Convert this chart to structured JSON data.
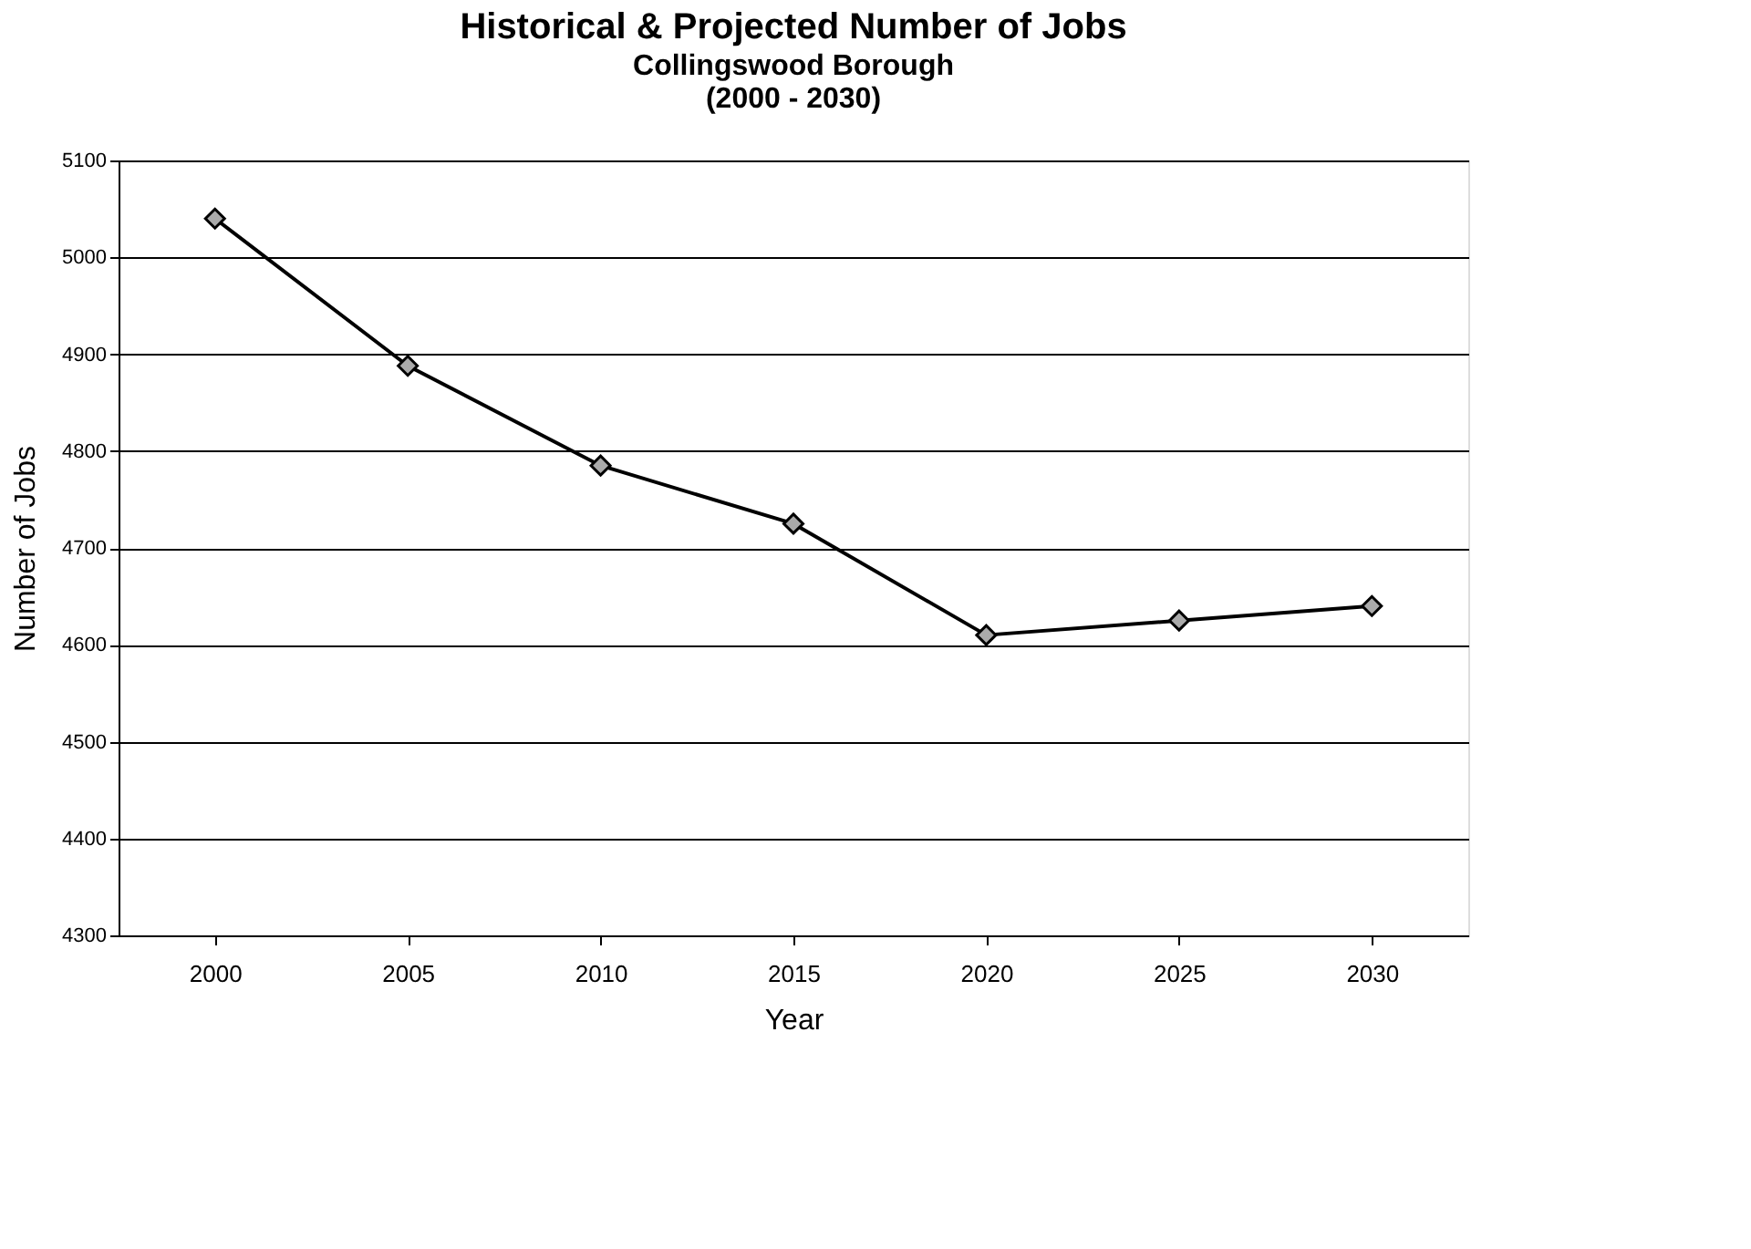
{
  "chart_data": {
    "type": "line",
    "title": "Historical & Projected Number of Jobs",
    "subtitle": [
      "Collingswood Borough",
      "(2000 - 2030)"
    ],
    "xlabel": "Year",
    "ylabel": "Number of Jobs",
    "categories": [
      "2000",
      "2005",
      "2010",
      "2015",
      "2020",
      "2025",
      "2030"
    ],
    "series": [
      {
        "color": "#000000",
        "values": [
          5040,
          4888,
          4785,
          4725,
          4610,
          4625,
          4640
        ]
      }
    ],
    "ylim": [
      4300,
      5100
    ],
    "yticks": [
      4300,
      4400,
      4500,
      4600,
      4700,
      4800,
      4900,
      5000,
      5100
    ],
    "grid": "y",
    "marker": "diamond",
    "line_style": "solid",
    "legend": false
  }
}
